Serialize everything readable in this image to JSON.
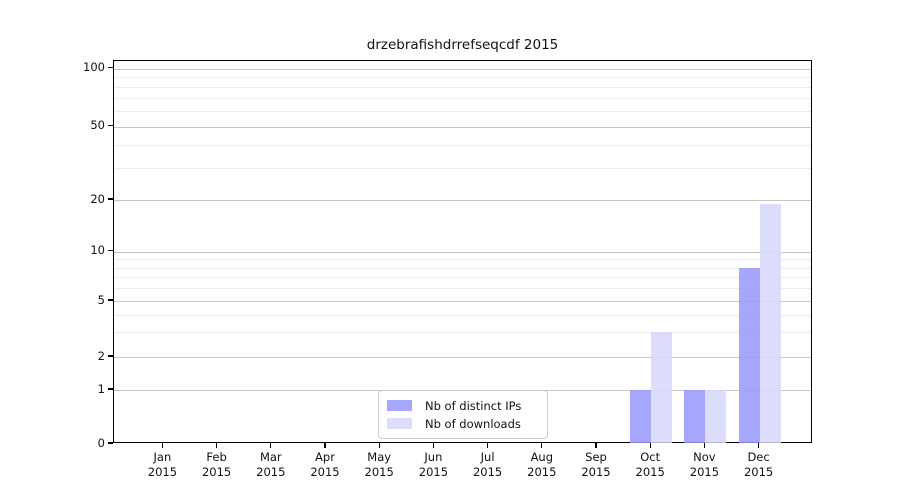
{
  "chart_data": {
    "type": "bar",
    "title": "drzebrafishdrrefseqcdf 2015",
    "categories": [
      {
        "month": "Jan",
        "year": "2015"
      },
      {
        "month": "Feb",
        "year": "2015"
      },
      {
        "month": "Mar",
        "year": "2015"
      },
      {
        "month": "Apr",
        "year": "2015"
      },
      {
        "month": "May",
        "year": "2015"
      },
      {
        "month": "Jun",
        "year": "2015"
      },
      {
        "month": "Jul",
        "year": "2015"
      },
      {
        "month": "Aug",
        "year": "2015"
      },
      {
        "month": "Sep",
        "year": "2015"
      },
      {
        "month": "Oct",
        "year": "2015"
      },
      {
        "month": "Nov",
        "year": "2015"
      },
      {
        "month": "Dec",
        "year": "2015"
      }
    ],
    "series": [
      {
        "name": "Nb of distinct IPs",
        "color": "#9696fa",
        "alpha": 0.85,
        "values": [
          0,
          0,
          0,
          0,
          0,
          0,
          0,
          0,
          0,
          1,
          1,
          8
        ]
      },
      {
        "name": "Nb of downloads",
        "color": "#d6d6fa",
        "alpha": 0.85,
        "values": [
          0,
          0,
          0,
          0,
          0,
          0,
          0,
          0,
          0,
          3,
          1,
          19
        ]
      }
    ],
    "y_axis": {
      "scale": "log-like (log1p)",
      "ticks": [
        0,
        1,
        2,
        5,
        10,
        20,
        50,
        100
      ],
      "minor_gridlines": [
        3,
        4,
        6,
        7,
        8,
        9,
        30,
        40,
        60,
        70,
        80,
        90
      ],
      "range": [
        0,
        113
      ]
    },
    "legend": {
      "position": "bottom-center"
    },
    "grid": true,
    "colors": {
      "major_grid": "#c6c6c6",
      "minor_grid": "#ececec",
      "axis": "#000000",
      "background": "#ffffff"
    }
  }
}
